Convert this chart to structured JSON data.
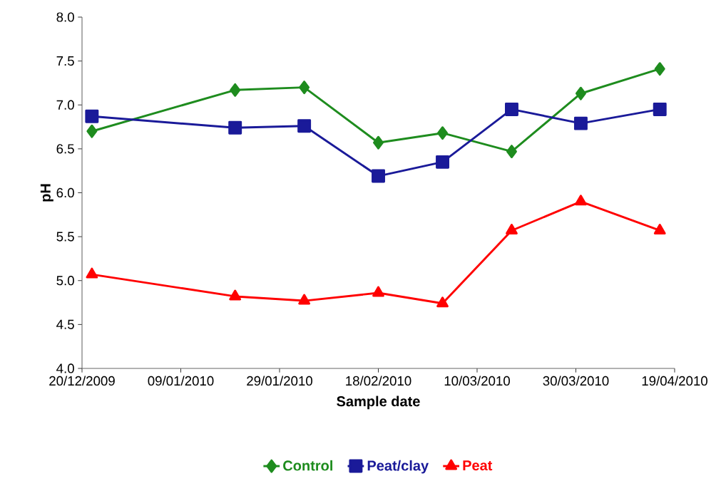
{
  "chart_data": {
    "type": "line",
    "xlabel": "Sample date",
    "ylabel": "pH",
    "x": [
      "2009-12-22",
      "2010-01-20",
      "2010-02-03",
      "2010-02-18",
      "2010-03-03",
      "2010-03-17",
      "2010-03-31",
      "2010-04-16"
    ],
    "series": [
      {
        "name": "Control",
        "color": "#1e8c1e",
        "marker": "diamond",
        "values": [
          6.7,
          7.17,
          7.2,
          6.57,
          6.68,
          6.47,
          7.13,
          7.41
        ]
      },
      {
        "name": "Peat/clay",
        "color": "#1a1a99",
        "marker": "square",
        "values": [
          6.87,
          6.74,
          6.76,
          6.19,
          6.35,
          6.95,
          6.79,
          6.95
        ]
      },
      {
        "name": "Peat",
        "color": "#ff0000",
        "marker": "triangle",
        "values": [
          5.07,
          4.82,
          4.77,
          4.86,
          4.74,
          5.57,
          5.9,
          5.57
        ]
      }
    ],
    "xlim": [
      "2009-12-20",
      "2010-04-19"
    ],
    "xticks": [
      {
        "value": "2009-12-20",
        "label": "20/12/2009"
      },
      {
        "value": "2010-01-09",
        "label": "09/01/2010"
      },
      {
        "value": "2010-01-29",
        "label": "29/01/2010"
      },
      {
        "value": "2010-02-18",
        "label": "18/02/2010"
      },
      {
        "value": "2010-03-10",
        "label": "10/03/2010"
      },
      {
        "value": "2010-03-30",
        "label": "30/03/2010"
      },
      {
        "value": "2010-04-19",
        "label": "19/04/2010"
      }
    ],
    "ylim": [
      4,
      8
    ],
    "yticks": [
      {
        "value": 4,
        "label": "4.0"
      },
      {
        "value": 4.5,
        "label": "4.5"
      },
      {
        "value": 5,
        "label": "5.0"
      },
      {
        "value": 5.5,
        "label": "5.5"
      },
      {
        "value": 6,
        "label": "6.0"
      },
      {
        "value": 6.5,
        "label": "6.5"
      },
      {
        "value": 7,
        "label": "7.0"
      },
      {
        "value": 7.5,
        "label": "7.5"
      },
      {
        "value": 8,
        "label": "8.0"
      }
    ],
    "grid": false,
    "legend": "bottom",
    "line_style": "solid"
  }
}
